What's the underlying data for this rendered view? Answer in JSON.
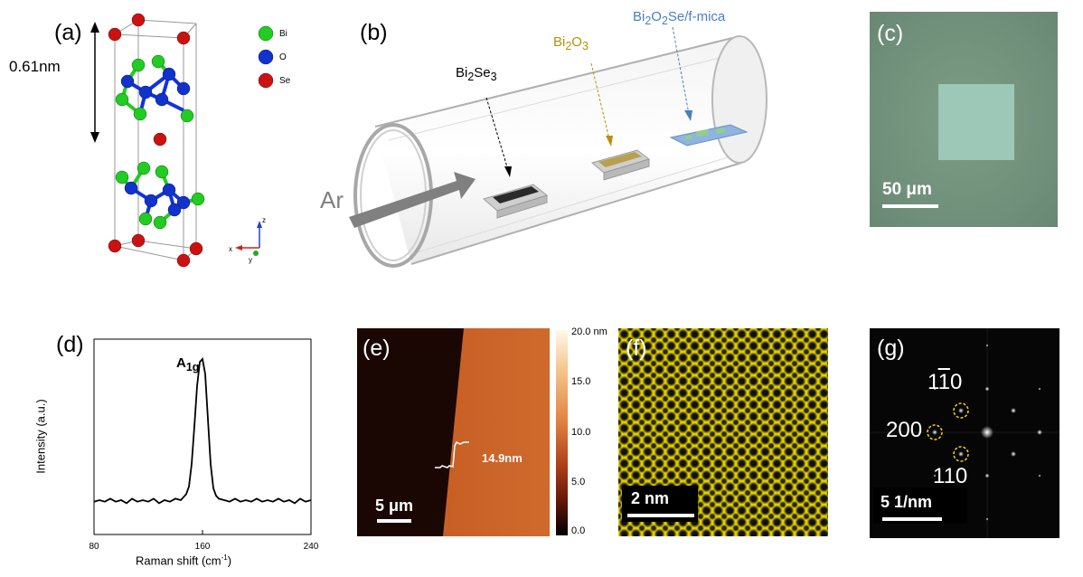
{
  "panel_a": {
    "label": "(a)",
    "dimension": "0.61nm",
    "legend": [
      {
        "element": "Bi",
        "color": "#22cc22"
      },
      {
        "element": "O",
        "color": "#1122cc"
      },
      {
        "element": "Se",
        "color": "#cc1111"
      }
    ],
    "axes": {
      "z": "z",
      "x": "x",
      "y": "y"
    }
  },
  "panel_b": {
    "label": "(b)",
    "gas": "Ar",
    "sources": [
      {
        "text": "Bi",
        "sub1": "2",
        "mid": "Se",
        "sub2": "3",
        "color": "#000000"
      },
      {
        "text": "Bi",
        "sub1": "2",
        "mid": "O",
        "sub2": "3",
        "color": "#b8900a"
      }
    ],
    "substrate": {
      "text": "Bi",
      "sub1": "2",
      "mid1": "O",
      "sub2": "2",
      "tail": "Se/f-mica",
      "color": "#4a7fc0"
    }
  },
  "panel_c": {
    "label": "(c)",
    "scale_bar": "50 μm"
  },
  "panel_d": {
    "label": "(d)",
    "peak_label": "A",
    "peak_sub": "1g",
    "ylabel": "Intensity (a.u.)",
    "xlabel": "Raman shift (cm",
    "xlabel_sup": "-1",
    "xlabel_end": ")",
    "ticks": [
      "80",
      "160",
      "240"
    ]
  },
  "chart_data": {
    "type": "line",
    "title": "",
    "xlabel": "Raman shift (cm-1)",
    "ylabel": "Intensity (a.u.)",
    "xlim": [
      80,
      240
    ],
    "ylim": [
      0,
      1
    ],
    "yticks_shown": false,
    "grid": false,
    "series": [
      {
        "x": [
          80,
          84,
          88,
          92,
          96,
          100,
          104,
          108,
          112,
          116,
          120,
          124,
          128,
          132,
          136,
          140,
          144,
          146,
          148,
          150,
          152,
          154,
          156,
          158,
          160,
          162,
          164,
          166,
          168,
          170,
          172,
          176,
          180,
          184,
          188,
          192,
          196,
          200,
          204,
          208,
          212,
          216,
          220,
          224,
          228,
          232,
          236,
          240
        ],
        "y": [
          0.05,
          0.06,
          0.05,
          0.07,
          0.05,
          0.06,
          0.04,
          0.07,
          0.05,
          0.06,
          0.05,
          0.07,
          0.04,
          0.06,
          0.05,
          0.07,
          0.06,
          0.08,
          0.1,
          0.15,
          0.3,
          0.55,
          0.82,
          0.98,
          1.0,
          0.9,
          0.6,
          0.3,
          0.14,
          0.09,
          0.07,
          0.06,
          0.05,
          0.07,
          0.05,
          0.06,
          0.05,
          0.07,
          0.05,
          0.06,
          0.05,
          0.07,
          0.05,
          0.06,
          0.04,
          0.07,
          0.05,
          0.06
        ]
      }
    ]
  },
  "panel_e": {
    "label": "(e)",
    "step": "14.9nm",
    "scale_bar": "5 μm",
    "colorbar_ticks": [
      "20.0 nm",
      "15.0",
      "10.0",
      "5.0",
      "0.0"
    ]
  },
  "panel_f": {
    "label": "(f)",
    "scale_bar": "2 nm"
  },
  "panel_g": {
    "label": "(g)",
    "spot_top_a": "1",
    "spot_top_b": "1",
    "spot_top_c": "0",
    "spot_left": "200",
    "spot_bottom": "110",
    "scale_bar": "5 1/nm"
  }
}
